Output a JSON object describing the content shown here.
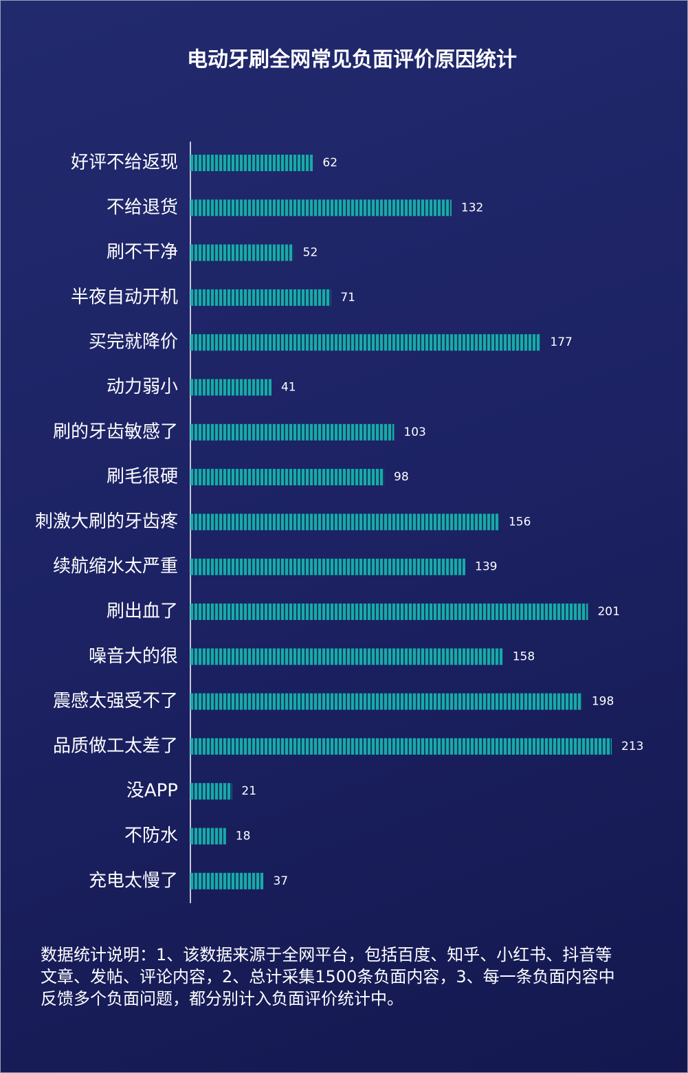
{
  "chart_data": {
    "type": "bar",
    "orientation": "horizontal",
    "title": "电动牙刷全网常见负面评价原因统计",
    "categories": [
      "好评不给返现",
      "不给退货",
      "刷不干净",
      "半夜自动开机",
      "买完就降价",
      "动力弱小",
      "刷的牙齿敏感了",
      "刷毛很硬",
      "刺激大刷的牙齿疼",
      "续航缩水太严重",
      "刷出血了",
      "噪音大的很",
      "震感太强受不了",
      "品质做工太差了",
      "没APP",
      "不防水",
      "充电太慢了"
    ],
    "values": [
      62,
      132,
      52,
      71,
      177,
      41,
      103,
      98,
      156,
      139,
      201,
      158,
      198,
      213,
      21,
      18,
      37
    ],
    "color": "#1aa8ad"
  },
  "notes": [
    "数据统计说明：1、该数据来源于全网平台，包括百度、知乎、小红书、抖音等",
    "文章、发帖、评论内容，2、总计采集1500条负面内容，3、每一条负面内容中",
    "反馈多个负面问题，都分别计入负面评价统计中。"
  ]
}
